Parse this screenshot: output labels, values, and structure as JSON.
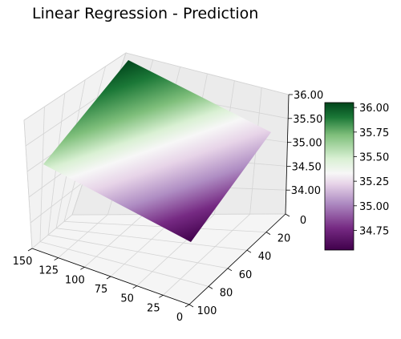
{
  "chart_data": {
    "type": "surface3d",
    "title": "Linear Regression - Prediction",
    "xlabel": "",
    "ylabel": "",
    "zlabel": "",
    "x_axis": {
      "range": [
        0,
        150
      ],
      "ticks": [
        "0",
        "25",
        "50",
        "75",
        "100",
        "125",
        "150"
      ]
    },
    "y_axis": {
      "range": [
        0,
        100
      ],
      "ticks": [
        "0",
        "20",
        "40",
        "60",
        "80",
        "100"
      ]
    },
    "z_axis": {
      "range": [
        33.5,
        36.0
      ],
      "ticks": [
        "34.00",
        "34.50",
        "35.00",
        "35.50",
        "36.00"
      ]
    },
    "surface": {
      "model": "plane",
      "corners": [
        {
          "x": 150,
          "y": 0,
          "z": 36.0
        },
        {
          "x": 0,
          "y": 0,
          "z": 35.1
        },
        {
          "x": 0,
          "y": 100,
          "z": 34.5
        },
        {
          "x": 150,
          "y": 100,
          "z": 35.3
        }
      ]
    },
    "colorbar": {
      "colormap": "PRGn",
      "range": [
        34.55,
        36.05
      ],
      "ticks": [
        "34.75",
        "35.00",
        "35.25",
        "35.50",
        "35.75",
        "36.00"
      ],
      "low_color": "#40004b",
      "mid_color": "#f7f7f7",
      "high_color": "#00441b"
    },
    "grid": true
  }
}
